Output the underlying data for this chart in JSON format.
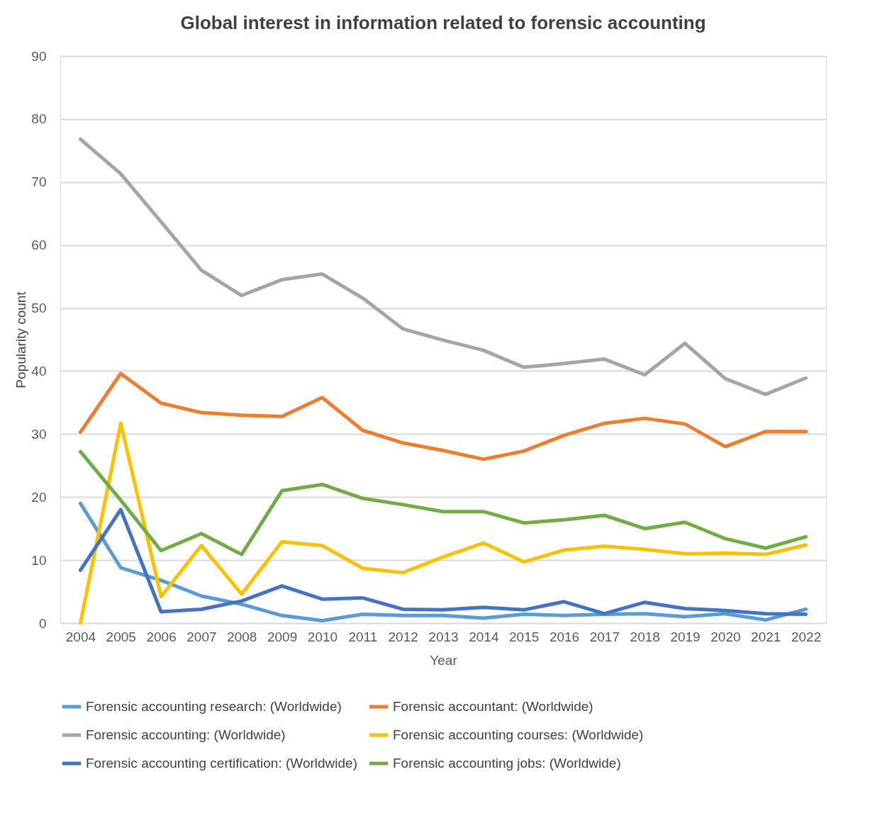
{
  "chart_data": {
    "type": "line",
    "title": "Global interest in information related to forensic accounting",
    "xlabel": "Year",
    "ylabel": "Popularity count",
    "categories": [
      "2004",
      "2005",
      "2006",
      "2007",
      "2008",
      "2009",
      "2010",
      "2011",
      "2012",
      "2013",
      "2014",
      "2015",
      "2016",
      "2017",
      "2018",
      "2019",
      "2020",
      "2021",
      "2022"
    ],
    "ylim": [
      0,
      90
    ],
    "yticks": [
      0,
      10,
      20,
      30,
      40,
      50,
      60,
      70,
      80,
      90
    ],
    "grid": "y",
    "legend": "bottom",
    "marker": "none",
    "line_style": "solid",
    "series": [
      {
        "name": "Forensic accounting research: (Worldwide)",
        "color": "#5b9bd5",
        "values": [
          19,
          8.8,
          6.8,
          4.3,
          3,
          1.2,
          0.4,
          1.4,
          1.2,
          1.2,
          0.8,
          1.4,
          1.2,
          1.4,
          1.5,
          1,
          1.5,
          0.5,
          2.2
        ]
      },
      {
        "name": "Forensic accountant: (Worldwide)",
        "color": "#ed7d31",
        "values": [
          30.3,
          39.6,
          34.9,
          33.4,
          33,
          32.8,
          35.8,
          30.6,
          28.6,
          27.4,
          26,
          27.3,
          29.8,
          31.7,
          32.5,
          31.6,
          28,
          30.4,
          30.4
        ]
      },
      {
        "name": "Forensic accounting: (Worldwide)",
        "color": "#a5a5a5",
        "values": [
          76.8,
          71.3,
          63.7,
          56,
          52,
          54.5,
          55.4,
          51.6,
          46.7,
          44.9,
          43.3,
          40.6,
          41.2,
          41.9,
          39.4,
          44.4,
          38.8,
          36.3,
          38.9
        ]
      },
      {
        "name": "Forensic accounting courses: (Worldwide)",
        "color": "#ffc000",
        "values": [
          0,
          31.7,
          4.2,
          12.3,
          4.6,
          12.9,
          12.3,
          8.7,
          8,
          10.5,
          12.7,
          9.7,
          11.6,
          12.2,
          11.7,
          11,
          11.1,
          10.9,
          12.4
        ]
      },
      {
        "name": "Forensic accounting certification: (Worldwide)",
        "color": "#4472c4",
        "values": [
          8.4,
          18,
          1.8,
          2.2,
          3.5,
          5.9,
          3.8,
          4,
          2.2,
          2.1,
          2.5,
          2.1,
          3.4,
          1.5,
          3.3,
          2.3,
          2,
          1.5,
          1.4
        ]
      },
      {
        "name": "Forensic accounting jobs: (Worldwide)",
        "color": "#70ad47",
        "values": [
          27.2,
          19.5,
          11.5,
          14.2,
          10.9,
          21,
          22,
          19.8,
          18.8,
          17.7,
          17.7,
          15.9,
          16.4,
          17.1,
          15,
          16,
          13.4,
          11.9,
          13.7
        ]
      }
    ]
  }
}
